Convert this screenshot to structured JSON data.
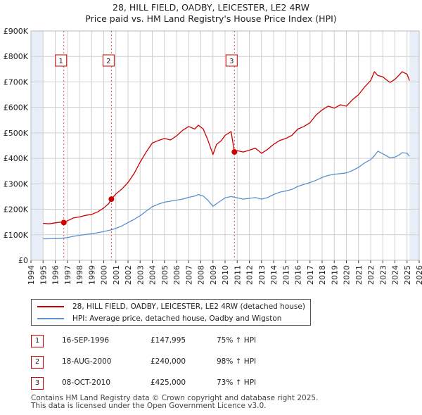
{
  "title": "28, HILL FIELD, OADBY, LEICESTER, LE2 4RW",
  "subtitle": "Price paid vs. HM Land Registry's House Price Index (HPI)",
  "colors": {
    "property": "#cc0000",
    "hpi": "#5b8fd0",
    "shade": "#e8eef8",
    "vline": "#cc0000"
  },
  "chart_data": {
    "type": "line",
    "title": "Price paid vs. HM Land Registry's House Price Index (HPI)",
    "xlabel": "",
    "ylabel": "",
    "xlim": [
      1994,
      2026
    ],
    "ylim": [
      0,
      900000
    ],
    "x_ticks": [
      1994,
      1995,
      1996,
      1997,
      1998,
      1999,
      2000,
      2001,
      2002,
      2003,
      2004,
      2005,
      2006,
      2007,
      2008,
      2009,
      2010,
      2011,
      2012,
      2013,
      2014,
      2015,
      2016,
      2017,
      2018,
      2019,
      2020,
      2021,
      2022,
      2023,
      2024,
      2025,
      2026
    ],
    "y_ticks": [
      {
        "value": 0,
        "label": "£0"
      },
      {
        "value": 100000,
        "label": "£100K"
      },
      {
        "value": 200000,
        "label": "£200K"
      },
      {
        "value": 300000,
        "label": "£300K"
      },
      {
        "value": 400000,
        "label": "£400K"
      },
      {
        "value": 500000,
        "label": "£500K"
      },
      {
        "value": 600000,
        "label": "£600K"
      },
      {
        "value": 700000,
        "label": "£700K"
      },
      {
        "value": 800000,
        "label": "£800K"
      },
      {
        "value": 900000,
        "label": "£900K"
      }
    ],
    "grid": true,
    "shaded_ranges": [
      [
        1994,
        1995
      ],
      [
        2025.2,
        2026
      ]
    ],
    "series": [
      {
        "name": "28, HILL FIELD, OADBY, LEICESTER, LE2 4RW (detached house)",
        "x": [
          1995.0,
          1995.5,
          1996.0,
          1996.5,
          1996.71,
          1997.0,
          1997.5,
          1998.0,
          1998.5,
          1999.0,
          1999.5,
          2000.0,
          2000.4,
          2000.63,
          2001.0,
          2001.5,
          2002.0,
          2002.5,
          2003.0,
          2003.5,
          2004.0,
          2004.5,
          2005.0,
          2005.5,
          2006.0,
          2006.5,
          2007.0,
          2007.5,
          2007.8,
          2008.2,
          2008.6,
          2009.0,
          2009.3,
          2009.7,
          2010.0,
          2010.5,
          2010.77,
          2011.0,
          2011.5,
          2012.0,
          2012.5,
          2013.0,
          2013.5,
          2014.0,
          2014.5,
          2015.0,
          2015.5,
          2016.0,
          2016.5,
          2017.0,
          2017.5,
          2018.0,
          2018.5,
          2019.0,
          2019.5,
          2020.0,
          2020.5,
          2021.0,
          2021.5,
          2022.0,
          2022.3,
          2022.6,
          2023.0,
          2023.3,
          2023.6,
          2024.0,
          2024.3,
          2024.6,
          2025.0,
          2025.2
        ],
        "y": [
          145000,
          143000,
          147000,
          150000,
          147995,
          155000,
          166000,
          170000,
          176000,
          180000,
          190000,
          205000,
          222000,
          240000,
          260000,
          280000,
          305000,
          340000,
          385000,
          425000,
          460000,
          470000,
          478000,
          472000,
          488000,
          510000,
          525000,
          515000,
          530000,
          515000,
          470000,
          415000,
          455000,
          470000,
          490000,
          505000,
          425000,
          430000,
          425000,
          432000,
          440000,
          420000,
          435000,
          455000,
          470000,
          478000,
          490000,
          515000,
          525000,
          540000,
          570000,
          590000,
          605000,
          597000,
          610000,
          605000,
          630000,
          650000,
          680000,
          705000,
          740000,
          725000,
          720000,
          708000,
          698000,
          710000,
          725000,
          740000,
          730000,
          705000
        ]
      },
      {
        "name": "HPI: Average price, detached house, Oadby and Wigston",
        "x": [
          1995.0,
          1995.5,
          1996.0,
          1996.5,
          1997.0,
          1997.5,
          1998.0,
          1998.5,
          1999.0,
          1999.5,
          2000.0,
          2000.5,
          2001.0,
          2001.5,
          2002.0,
          2002.5,
          2003.0,
          2003.5,
          2004.0,
          2004.5,
          2005.0,
          2005.5,
          2006.0,
          2006.5,
          2007.0,
          2007.5,
          2007.8,
          2008.2,
          2008.6,
          2009.0,
          2009.3,
          2009.7,
          2010.0,
          2010.5,
          2011.0,
          2011.5,
          2012.0,
          2012.5,
          2013.0,
          2013.5,
          2014.0,
          2014.5,
          2015.0,
          2015.5,
          2016.0,
          2016.5,
          2017.0,
          2017.5,
          2018.0,
          2018.5,
          2019.0,
          2019.5,
          2020.0,
          2020.5,
          2021.0,
          2021.5,
          2022.0,
          2022.3,
          2022.6,
          2023.0,
          2023.3,
          2023.6,
          2024.0,
          2024.3,
          2024.6,
          2025.0,
          2025.2
        ],
        "y": [
          84000,
          84500,
          85000,
          86000,
          89000,
          94000,
          98000,
          101000,
          104000,
          108000,
          113000,
          118000,
          125000,
          135000,
          148000,
          160000,
          175000,
          193000,
          210000,
          220000,
          228000,
          232000,
          236000,
          240000,
          247000,
          252000,
          258000,
          252000,
          235000,
          212000,
          222000,
          235000,
          245000,
          250000,
          245000,
          240000,
          243000,
          246000,
          240000,
          246000,
          258000,
          267000,
          272000,
          278000,
          290000,
          298000,
          305000,
          314000,
          325000,
          333000,
          337000,
          340000,
          343000,
          352000,
          365000,
          382000,
          395000,
          410000,
          428000,
          418000,
          410000,
          402000,
          405000,
          412000,
          422000,
          420000,
          408000
        ]
      }
    ],
    "markers": [
      {
        "id": "1",
        "x": 1996.71,
        "y": 147995
      },
      {
        "id": "2",
        "x": 2000.63,
        "y": 240000
      },
      {
        "id": "3",
        "x": 2010.77,
        "y": 425000
      }
    ]
  },
  "legend": {
    "property_label": "28, HILL FIELD, OADBY, LEICESTER, LE2 4RW (detached house)",
    "hpi_label": "HPI: Average price, detached house, Oadby and Wigston"
  },
  "transactions": [
    {
      "id": "1",
      "date": "16-SEP-1996",
      "price": "£147,995",
      "hpi": "75% ↑ HPI"
    },
    {
      "id": "2",
      "date": "18-AUG-2000",
      "price": "£240,000",
      "hpi": "98% ↑ HPI"
    },
    {
      "id": "3",
      "date": "08-OCT-2010",
      "price": "£425,000",
      "hpi": "73% ↑ HPI"
    }
  ],
  "footer": {
    "line1": "Contains HM Land Registry data © Crown copyright and database right 2025.",
    "line2": "This data is licensed under the Open Government Licence v3.0."
  }
}
